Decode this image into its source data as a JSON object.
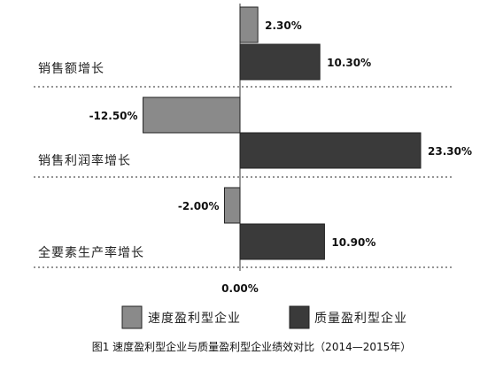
{
  "chart_data": {
    "type": "bar",
    "orientation": "horizontal",
    "categories": [
      "销售额增长",
      "销售利润率增长",
      "全要素生产率增长"
    ],
    "series": [
      {
        "name": "速度盈利型企业",
        "values": [
          2.3,
          -12.5,
          -2.0
        ],
        "color": "#8a8a8a"
      },
      {
        "name": "质量盈利型企业",
        "values": [
          10.3,
          23.3,
          10.9
        ],
        "color": "#3a3a3a"
      }
    ],
    "value_labels": [
      [
        "2.30%",
        "-12.50%",
        "-2.00%"
      ],
      [
        "10.30%",
        "23.30%",
        "10.90%"
      ]
    ],
    "zero_label": "0.00%",
    "xlim": [
      -15,
      25
    ],
    "grid": false,
    "legend_position": "bottom",
    "title": "图1 速度盈利型企业与质量盈利型企业绩效对比（2014—2015年）"
  }
}
